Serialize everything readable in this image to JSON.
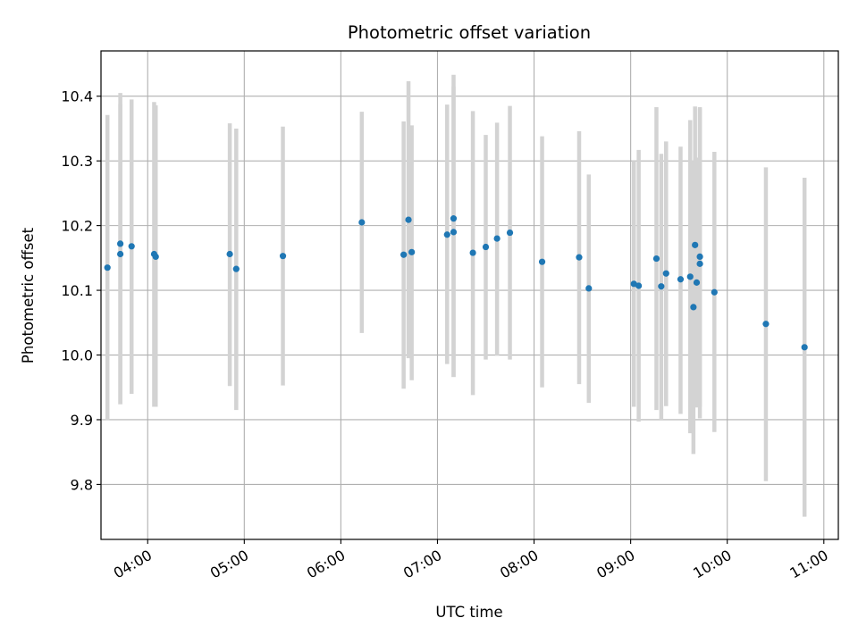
{
  "chart_data": {
    "type": "scatter",
    "title": "Photometric offset variation",
    "xlabel": "UTC time",
    "ylabel": "Photometric offset",
    "x_format": "HH:MM",
    "xlim": [
      "03:31",
      "11:09"
    ],
    "ylim": [
      9.715,
      10.47
    ],
    "x_ticks": [
      "04:00",
      "05:00",
      "06:00",
      "07:00",
      "08:00",
      "09:00",
      "10:00",
      "11:00"
    ],
    "y_ticks": [
      9.8,
      9.9,
      10.0,
      10.1,
      10.2,
      10.3,
      10.4
    ],
    "grid": true,
    "errorbar_color": "#d3d3d3",
    "point_color": "#1f77b4",
    "points": [
      {
        "x": "03:35",
        "y": 10.135,
        "ylo": 9.899,
        "yhi": 10.371
      },
      {
        "x": "03:43",
        "y": 10.172,
        "ylo": 9.924,
        "yhi": 10.405
      },
      {
        "x": "03:43",
        "y": 10.156,
        "ylo": 9.924,
        "yhi": 10.388
      },
      {
        "x": "03:50",
        "y": 10.168,
        "ylo": 9.94,
        "yhi": 10.395
      },
      {
        "x": "04:04",
        "y": 10.156,
        "ylo": 9.92,
        "yhi": 10.391
      },
      {
        "x": "04:05",
        "y": 10.152,
        "ylo": 9.92,
        "yhi": 10.386
      },
      {
        "x": "04:51",
        "y": 10.156,
        "ylo": 9.952,
        "yhi": 10.358
      },
      {
        "x": "04:55",
        "y": 10.133,
        "ylo": 9.915,
        "yhi": 10.35
      },
      {
        "x": "05:24",
        "y": 10.153,
        "ylo": 9.953,
        "yhi": 10.353
      },
      {
        "x": "06:13",
        "y": 10.205,
        "ylo": 10.034,
        "yhi": 10.376
      },
      {
        "x": "06:39",
        "y": 10.155,
        "ylo": 9.948,
        "yhi": 10.361
      },
      {
        "x": "06:42",
        "y": 10.209,
        "ylo": 9.995,
        "yhi": 10.423
      },
      {
        "x": "06:44",
        "y": 10.159,
        "ylo": 9.961,
        "yhi": 10.355
      },
      {
        "x": "07:06",
        "y": 10.186,
        "ylo": 9.986,
        "yhi": 10.387
      },
      {
        "x": "07:10",
        "y": 10.211,
        "ylo": 9.966,
        "yhi": 10.433
      },
      {
        "x": "07:10",
        "y": 10.19,
        "ylo": 9.966,
        "yhi": 10.415
      },
      {
        "x": "07:22",
        "y": 10.158,
        "ylo": 9.938,
        "yhi": 10.377
      },
      {
        "x": "07:30",
        "y": 10.167,
        "ylo": 9.993,
        "yhi": 10.34
      },
      {
        "x": "07:37",
        "y": 10.18,
        "ylo": 9.999,
        "yhi": 10.359
      },
      {
        "x": "07:45",
        "y": 10.189,
        "ylo": 9.993,
        "yhi": 10.385
      },
      {
        "x": "08:05",
        "y": 10.144,
        "ylo": 9.95,
        "yhi": 10.338
      },
      {
        "x": "08:28",
        "y": 10.151,
        "ylo": 9.955,
        "yhi": 10.346
      },
      {
        "x": "08:34",
        "y": 10.103,
        "ylo": 9.926,
        "yhi": 10.279
      },
      {
        "x": "09:02",
        "y": 10.11,
        "ylo": 9.92,
        "yhi": 10.3
      },
      {
        "x": "09:05",
        "y": 10.107,
        "ylo": 9.897,
        "yhi": 10.317
      },
      {
        "x": "09:16",
        "y": 10.149,
        "ylo": 9.915,
        "yhi": 10.383
      },
      {
        "x": "09:19",
        "y": 10.106,
        "ylo": 9.9,
        "yhi": 10.311
      },
      {
        "x": "09:22",
        "y": 10.126,
        "ylo": 9.921,
        "yhi": 10.33
      },
      {
        "x": "09:31",
        "y": 10.117,
        "ylo": 9.909,
        "yhi": 10.322
      },
      {
        "x": "09:37",
        "y": 10.121,
        "ylo": 9.879,
        "yhi": 10.363
      },
      {
        "x": "09:39",
        "y": 10.074,
        "ylo": 9.847,
        "yhi": 10.301
      },
      {
        "x": "09:40",
        "y": 10.17,
        "ylo": 9.94,
        "yhi": 10.384
      },
      {
        "x": "09:41",
        "y": 10.112,
        "ylo": 9.919,
        "yhi": 10.305
      },
      {
        "x": "09:43",
        "y": 10.152,
        "ylo": 9.92,
        "yhi": 10.383
      },
      {
        "x": "09:43",
        "y": 10.141,
        "ylo": 9.902,
        "yhi": 10.381
      },
      {
        "x": "09:52",
        "y": 10.097,
        "ylo": 9.881,
        "yhi": 10.314
      },
      {
        "x": "10:24",
        "y": 10.048,
        "ylo": 9.805,
        "yhi": 10.29
      },
      {
        "x": "10:48",
        "y": 10.012,
        "ylo": 9.75,
        "yhi": 10.274
      }
    ]
  }
}
